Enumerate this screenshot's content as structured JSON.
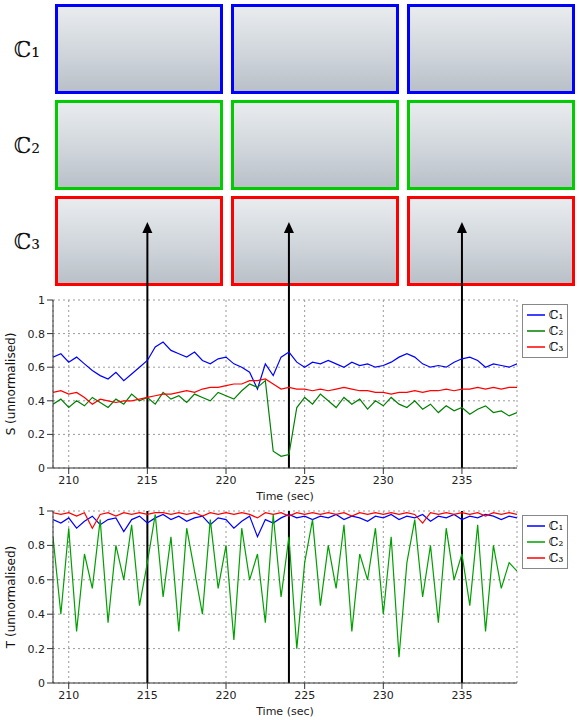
{
  "image_rows": {
    "labels": [
      "ℂ₁",
      "ℂ₂",
      "ℂ₃"
    ],
    "colors": [
      "#0000ff",
      "#00cc00",
      "#ff0000"
    ]
  },
  "arrows": {
    "x": [
      215,
      224,
      235
    ]
  },
  "chart_data": [
    {
      "type": "line",
      "xlabel": "Time (sec)",
      "ylabel": "S (unnormalised)",
      "x": [
        209,
        209.5,
        210,
        210.5,
        211,
        211.5,
        212,
        212.5,
        213,
        213.5,
        214,
        214.5,
        215,
        215.5,
        216,
        216.5,
        217,
        217.5,
        218,
        218.5,
        219,
        219.5,
        220,
        220.5,
        221,
        221.5,
        222,
        222.5,
        223,
        223.5,
        224,
        224.5,
        225,
        225.5,
        226,
        226.5,
        227,
        227.5,
        228,
        228.5,
        229,
        229.5,
        230,
        230.5,
        231,
        231.5,
        232,
        232.5,
        233,
        233.5,
        234,
        234.5,
        235,
        235.5,
        236,
        236.5,
        237,
        237.5,
        238,
        238.5
      ],
      "xlim": [
        209,
        238.5
      ],
      "xticks": [
        210,
        215,
        220,
        225,
        230,
        235
      ],
      "ylim": [
        0,
        1
      ],
      "yticks": [
        0,
        0.2,
        0.4,
        0.6,
        0.8,
        1
      ],
      "grid": true,
      "legend": "right",
      "series": [
        {
          "name": "ℂ₁",
          "color": "#0000ff",
          "values": [
            0.66,
            0.68,
            0.63,
            0.66,
            0.62,
            0.58,
            0.55,
            0.53,
            0.57,
            0.52,
            0.56,
            0.6,
            0.64,
            0.72,
            0.75,
            0.7,
            0.68,
            0.66,
            0.69,
            0.64,
            0.62,
            0.65,
            0.66,
            0.62,
            0.6,
            0.57,
            0.47,
            0.62,
            0.55,
            0.66,
            0.69,
            0.63,
            0.6,
            0.63,
            0.62,
            0.64,
            0.62,
            0.6,
            0.63,
            0.61,
            0.62,
            0.6,
            0.61,
            0.63,
            0.66,
            0.68,
            0.66,
            0.62,
            0.6,
            0.61,
            0.6,
            0.63,
            0.65,
            0.66,
            0.64,
            0.6,
            0.62,
            0.61,
            0.6,
            0.62
          ]
        },
        {
          "name": "ℂ₂",
          "color": "#008000",
          "values": [
            0.38,
            0.41,
            0.36,
            0.4,
            0.37,
            0.42,
            0.39,
            0.36,
            0.41,
            0.38,
            0.44,
            0.4,
            0.42,
            0.38,
            0.45,
            0.41,
            0.43,
            0.39,
            0.44,
            0.42,
            0.4,
            0.45,
            0.43,
            0.41,
            0.46,
            0.5,
            0.48,
            0.52,
            0.1,
            0.07,
            0.08,
            0.36,
            0.42,
            0.38,
            0.44,
            0.4,
            0.36,
            0.42,
            0.38,
            0.41,
            0.35,
            0.4,
            0.37,
            0.42,
            0.38,
            0.36,
            0.4,
            0.35,
            0.38,
            0.33,
            0.37,
            0.34,
            0.36,
            0.32,
            0.35,
            0.37,
            0.33,
            0.34,
            0.31,
            0.33
          ]
        },
        {
          "name": "ℂ₃",
          "color": "#ff0000",
          "values": [
            0.45,
            0.46,
            0.44,
            0.45,
            0.42,
            0.38,
            0.41,
            0.4,
            0.39,
            0.4,
            0.4,
            0.41,
            0.42,
            0.43,
            0.44,
            0.44,
            0.45,
            0.46,
            0.45,
            0.47,
            0.48,
            0.48,
            0.49,
            0.5,
            0.5,
            0.52,
            0.52,
            0.53,
            0.5,
            0.47,
            0.48,
            0.47,
            0.47,
            0.46,
            0.47,
            0.46,
            0.47,
            0.48,
            0.47,
            0.46,
            0.46,
            0.45,
            0.45,
            0.44,
            0.45,
            0.45,
            0.46,
            0.45,
            0.46,
            0.46,
            0.47,
            0.46,
            0.47,
            0.47,
            0.48,
            0.47,
            0.48,
            0.47,
            0.48,
            0.48
          ]
        }
      ]
    },
    {
      "type": "line",
      "xlabel": "Time (sec)",
      "ylabel": "T (unnormalised)",
      "x": [
        209,
        209.5,
        210,
        210.5,
        211,
        211.5,
        212,
        212.5,
        213,
        213.5,
        214,
        214.5,
        215,
        215.5,
        216,
        216.5,
        217,
        217.5,
        218,
        218.5,
        219,
        219.5,
        220,
        220.5,
        221,
        221.5,
        222,
        222.5,
        223,
        223.5,
        224,
        224.5,
        225,
        225.5,
        226,
        226.5,
        227,
        227.5,
        228,
        228.5,
        229,
        229.5,
        230,
        230.5,
        231,
        231.5,
        232,
        232.5,
        233,
        233.5,
        234,
        234.5,
        235,
        235.5,
        236,
        236.5,
        237,
        237.5,
        238,
        238.5
      ],
      "xlim": [
        209,
        238.5
      ],
      "xticks": [
        210,
        215,
        220,
        225,
        230,
        235
      ],
      "ylim": [
        0,
        1
      ],
      "yticks": [
        0,
        0.2,
        0.4,
        0.6,
        0.8,
        1
      ],
      "grid": true,
      "legend": "right",
      "series": [
        {
          "name": "ℂ₁",
          "color": "#0000ff",
          "values": [
            0.95,
            0.93,
            0.96,
            0.9,
            0.94,
            0.97,
            0.92,
            0.95,
            0.96,
            0.88,
            0.95,
            0.97,
            0.93,
            0.96,
            0.98,
            0.95,
            0.97,
            0.94,
            0.96,
            0.97,
            0.92,
            0.96,
            0.95,
            0.9,
            0.94,
            0.97,
            0.85,
            0.95,
            0.93,
            0.96,
            0.98,
            0.96,
            0.97,
            0.95,
            0.97,
            0.96,
            0.98,
            0.95,
            0.97,
            0.96,
            0.94,
            0.97,
            0.96,
            0.98,
            0.95,
            0.97,
            0.96,
            0.98,
            0.94,
            0.97,
            0.96,
            0.98,
            0.95,
            0.97,
            0.96,
            0.98,
            0.97,
            0.95,
            0.97,
            0.96
          ]
        },
        {
          "name": "ℂ₂",
          "color": "#00a000",
          "values": [
            0.85,
            0.4,
            0.9,
            0.3,
            0.75,
            0.55,
            0.95,
            0.35,
            0.8,
            0.6,
            0.92,
            0.45,
            0.7,
            0.98,
            0.5,
            0.85,
            0.3,
            0.9,
            0.65,
            0.4,
            0.95,
            0.55,
            0.8,
            0.25,
            0.9,
            0.6,
            0.75,
            0.35,
            0.98,
            0.5,
            0.85,
            0.2,
            0.7,
            0.95,
            0.45,
            0.8,
            0.55,
            0.92,
            0.3,
            0.75,
            0.6,
            0.9,
            0.4,
            0.85,
            0.15,
            0.7,
            0.95,
            0.5,
            0.8,
            0.35,
            0.9,
            0.6,
            0.75,
            0.45,
            0.92,
            0.3,
            0.8,
            0.55,
            0.7,
            0.65
          ]
        },
        {
          "name": "ℂ₃",
          "color": "#ff0000",
          "values": [
            0.99,
            0.98,
            0.99,
            0.97,
            0.99,
            0.9,
            0.98,
            0.99,
            0.97,
            0.99,
            0.98,
            0.99,
            0.98,
            0.99,
            0.99,
            0.98,
            0.99,
            0.98,
            0.99,
            0.97,
            0.99,
            0.98,
            0.99,
            0.98,
            0.99,
            0.98,
            0.96,
            0.99,
            0.98,
            0.99,
            0.97,
            0.99,
            0.98,
            0.99,
            0.98,
            0.99,
            0.98,
            0.99,
            0.97,
            0.99,
            0.98,
            0.99,
            0.98,
            0.99,
            0.98,
            0.99,
            0.98,
            0.93,
            0.99,
            0.98,
            0.99,
            0.98,
            0.99,
            0.98,
            0.99,
            0.97,
            0.99,
            0.98,
            0.99,
            0.98
          ]
        }
      ]
    }
  ]
}
